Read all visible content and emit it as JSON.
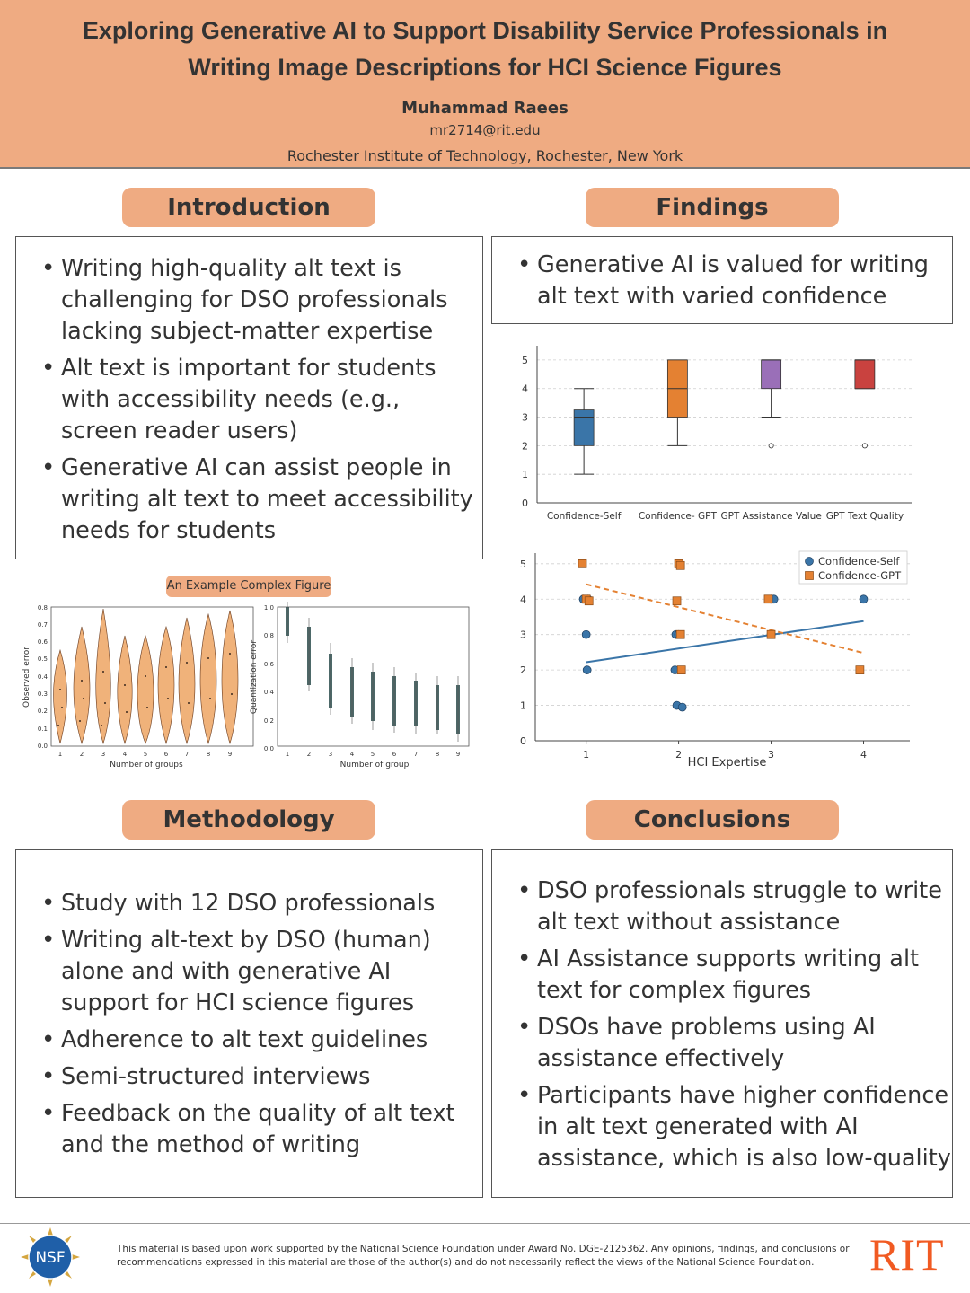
{
  "header": {
    "title_line1": "Exploring Generative AI to Support Disability Service Professionals in",
    "title_line2": "Writing Image Descriptions for HCI Science Figures",
    "author": "Muhammad Raees",
    "email": "mr2714@rit.edu",
    "institution": "Rochester Institute of Technology, Rochester, New York"
  },
  "sections": {
    "introduction": {
      "heading": "Introduction",
      "bullets": [
        "Writing high-quality alt text is challenging for DSO professionals lacking subject-matter expertise",
        "Alt text is important for students with accessibility needs (e.g., screen reader users)",
        "Generative AI can assist people in writing alt text to meet accessibility needs for students"
      ]
    },
    "findings": {
      "heading": "Findings",
      "bullets": [
        "Generative AI is valued for writing alt text with varied confidence"
      ]
    },
    "methodology": {
      "heading": "Methodology",
      "bullets": [
        "Study with 12 DSO professionals",
        "Writing alt-text by DSO (human) alone and with generative AI support for HCI science figures",
        "Adherence to alt text guidelines",
        "Semi-structured interviews",
        "Feedback on the quality of alt text and the method of writing"
      ]
    },
    "conclusions": {
      "heading": "Conclusions",
      "bullets": [
        "DSO professionals struggle to write alt text without assistance",
        "AI Assistance supports writing alt text for complex figures",
        "DSOs have problems using AI assistance effectively",
        "Participants have higher confidence in alt text generated with AI assistance, which is also low-quality"
      ]
    }
  },
  "example_figure": {
    "label": "An Example Complex Figure"
  },
  "footer": {
    "logo_text": "NSF",
    "note": "This material is based upon work supported by the National Science Foundation under Award No. DGE-2125362. Any opinions, findings, and conclusions or recommendations expressed in this material are those of the author(s) and do not necessarily reflect the views of the National Science Foundation.",
    "rit": "RIT"
  },
  "chart_data": [
    {
      "type": "box",
      "categories": [
        "Confidence-Self",
        "Confidence- GPT",
        "GPT Assistance Value",
        "GPT Text Quality"
      ],
      "colors": [
        "#3a75a8",
        "#e48132",
        "#9a6fb8",
        "#c9423f"
      ],
      "boxes": [
        {
          "min": 1,
          "q1": 2,
          "median": 3,
          "q3": 3.25,
          "max": 4,
          "outliers": []
        },
        {
          "min": 2,
          "q1": 3,
          "median": 4,
          "q3": 5,
          "max": 5,
          "outliers": []
        },
        {
          "min": 3,
          "q1": 4,
          "median": 5,
          "q3": 5,
          "max": 5,
          "outliers": [
            2
          ]
        },
        {
          "min": 4,
          "q1": 4,
          "median": 5,
          "q3": 5,
          "max": 5,
          "outliers": [
            2
          ]
        }
      ],
      "ylim": [
        0,
        5.5
      ],
      "yticks": [
        0,
        1,
        2,
        3,
        4,
        5
      ],
      "grid": true
    },
    {
      "type": "scatter",
      "xlabel": "HCI Expertise",
      "xticks": [
        1,
        2,
        3,
        4
      ],
      "yticks": [
        0,
        1,
        2,
        3,
        4,
        5
      ],
      "xlim": [
        0.45,
        4.5
      ],
      "ylim": [
        0,
        5.3
      ],
      "legend_position": "top-right",
      "series": [
        {
          "name": "Confidence-Self",
          "color": "#3a75a8",
          "marker": "circle",
          "points": [
            [
              0.97,
              4
            ],
            [
              1.02,
              4
            ],
            [
              1,
              3
            ],
            [
              1.01,
              2
            ],
            [
              1.97,
              3
            ],
            [
              2,
              3
            ],
            [
              1.96,
              2
            ],
            [
              1.98,
              1
            ],
            [
              2.04,
              0.95
            ],
            [
              3,
              4
            ],
            [
              3.03,
              4
            ],
            [
              3,
              3
            ],
            [
              4,
              4
            ]
          ],
          "trend": [
            [
              1,
              2.22
            ],
            [
              4,
              3.38
            ]
          ]
        },
        {
          "name": "Confidence-GPT",
          "color": "#e48132",
          "marker": "square",
          "points": [
            [
              0.96,
              5
            ],
            [
              1,
              4
            ],
            [
              1.03,
              3.95
            ],
            [
              2,
              5
            ],
            [
              2.02,
              4.95
            ],
            [
              1.98,
              3.95
            ],
            [
              2.02,
              3
            ],
            [
              2.03,
              2
            ],
            [
              2.97,
              4
            ],
            [
              3,
              3
            ],
            [
              3.96,
              2
            ]
          ],
          "trend": [
            [
              1,
              4.42
            ],
            [
              4,
              2.48
            ]
          ]
        }
      ]
    }
  ]
}
